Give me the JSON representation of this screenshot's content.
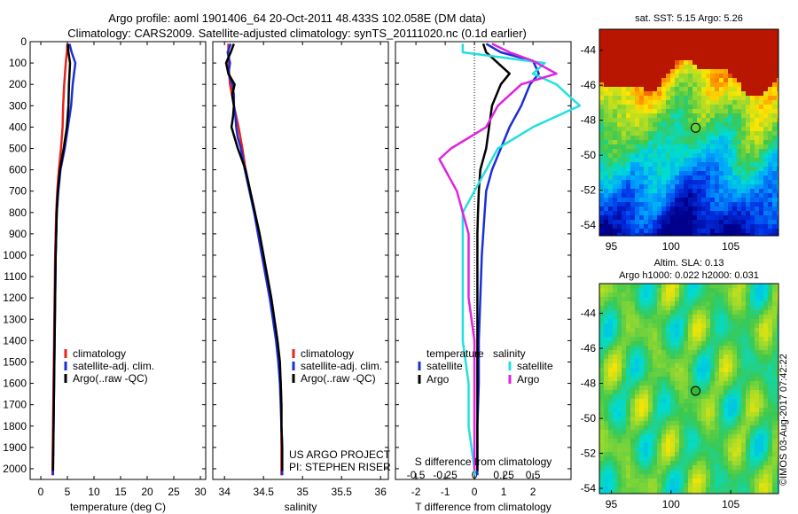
{
  "title_line1": "Argo profile: aoml 1901406_64 20-Oct-2011 48.433S 102.058E (DM data)",
  "title_line2": "Climatology: CARS2009. Satellite-adjusted climatology: synTS_20111020.nc (0.1d earlier)",
  "colors": {
    "climatology": "#e8231b",
    "satellite": "#1a2fd6",
    "argo": "#000000",
    "sal_sat": "#22e0e0",
    "sal_argo": "#e022e0"
  },
  "chart_data": [
    {
      "type": "line",
      "xlabel": "temperature (deg C)",
      "xlim": [
        -2,
        31
      ],
      "xticks": [
        0,
        5,
        10,
        15,
        20,
        25,
        30
      ],
      "ylim": [
        0,
        2050
      ],
      "yticks": [
        0,
        100,
        200,
        300,
        400,
        500,
        600,
        700,
        800,
        900,
        1000,
        1100,
        1200,
        1300,
        1400,
        1500,
        1600,
        1700,
        1800,
        1900,
        2000
      ],
      "legend": [
        "climatology",
        "satellite-adj. clim.",
        "Argo(..raw -QC)"
      ],
      "series": [
        {
          "name": "climatology",
          "color": "#e8231b",
          "points": [
            [
              5.0,
              10
            ],
            [
              4.9,
              50
            ],
            [
              4.7,
              100
            ],
            [
              4.4,
              200
            ],
            [
              4.2,
              300
            ],
            [
              4.1,
              400
            ],
            [
              3.8,
              500
            ],
            [
              3.4,
              600
            ],
            [
              3.1,
              700
            ],
            [
              2.9,
              800
            ],
            [
              2.8,
              900
            ],
            [
              2.7,
              1000
            ],
            [
              2.6,
              1200
            ],
            [
              2.5,
              1400
            ],
            [
              2.4,
              1600
            ],
            [
              2.3,
              1800
            ],
            [
              2.2,
              2000
            ],
            [
              2.2,
              2030
            ]
          ]
        },
        {
          "name": "satellite-adj. clim.",
          "color": "#1a2fd6",
          "points": [
            [
              5.4,
              10
            ],
            [
              5.8,
              50
            ],
            [
              6.5,
              100
            ],
            [
              6.0,
              200
            ],
            [
              5.7,
              300
            ],
            [
              5.1,
              400
            ],
            [
              4.5,
              500
            ],
            [
              3.7,
              600
            ],
            [
              3.3,
              700
            ],
            [
              3.0,
              800
            ],
            [
              2.9,
              900
            ],
            [
              2.8,
              1000
            ],
            [
              2.7,
              1200
            ],
            [
              2.6,
              1400
            ],
            [
              2.5,
              1600
            ],
            [
              2.4,
              1800
            ],
            [
              2.3,
              2000
            ],
            [
              2.3,
              2030
            ]
          ]
        },
        {
          "name": "Argo(..raw -QC)",
          "color": "#000000",
          "points": [
            [
              5.1,
              10
            ],
            [
              5.2,
              50
            ],
            [
              5.5,
              100
            ],
            [
              5.3,
              200
            ],
            [
              5.2,
              300
            ],
            [
              4.9,
              400
            ],
            [
              4.3,
              500
            ],
            [
              3.6,
              600
            ],
            [
              3.2,
              700
            ],
            [
              3.0,
              800
            ],
            [
              2.9,
              900
            ],
            [
              2.8,
              1000
            ],
            [
              2.7,
              1200
            ],
            [
              2.6,
              1400
            ],
            [
              2.5,
              1600
            ],
            [
              2.4,
              1800
            ],
            [
              2.3,
              2000
            ],
            [
              2.3,
              2010
            ]
          ]
        }
      ]
    },
    {
      "type": "line",
      "xlabel": "salinity",
      "xlim": [
        33.85,
        36.1
      ],
      "xticks": [
        34,
        34.5,
        35,
        35.5,
        36
      ],
      "ylim": [
        0,
        2050
      ],
      "legend": [
        "climatology",
        "satellite-adj. clim.",
        "Argo(..raw -QC)"
      ],
      "annotation": [
        "US ARGO PROJECT",
        "PI: STEPHEN RISER"
      ],
      "series": [
        {
          "name": "climatology",
          "color": "#e8231b",
          "points": [
            [
              34.05,
              10
            ],
            [
              34.05,
              100
            ],
            [
              34.07,
              200
            ],
            [
              34.12,
              300
            ],
            [
              34.18,
              400
            ],
            [
              34.23,
              500
            ],
            [
              34.27,
              600
            ],
            [
              34.33,
              700
            ],
            [
              34.39,
              800
            ],
            [
              34.43,
              900
            ],
            [
              34.48,
              1000
            ],
            [
              34.53,
              1100
            ],
            [
              34.58,
              1200
            ],
            [
              34.63,
              1300
            ],
            [
              34.67,
              1400
            ],
            [
              34.7,
              1500
            ],
            [
              34.72,
              1600
            ],
            [
              34.73,
              1700
            ],
            [
              34.73,
              1800
            ],
            [
              34.73,
              1900
            ],
            [
              34.73,
              2000
            ],
            [
              34.73,
              2030
            ]
          ]
        },
        {
          "name": "satellite-adj. clim.",
          "color": "#1a2fd6",
          "points": [
            [
              34.08,
              10
            ],
            [
              34.04,
              50
            ],
            [
              34.07,
              100
            ],
            [
              34.05,
              150
            ],
            [
              34.1,
              200
            ],
            [
              34.12,
              250
            ],
            [
              34.12,
              300
            ],
            [
              34.14,
              350
            ],
            [
              34.15,
              400
            ],
            [
              34.17,
              450
            ],
            [
              34.21,
              500
            ],
            [
              34.26,
              600
            ],
            [
              34.32,
              700
            ],
            [
              34.38,
              800
            ],
            [
              34.43,
              900
            ],
            [
              34.48,
              1000
            ],
            [
              34.53,
              1100
            ],
            [
              34.58,
              1200
            ],
            [
              34.62,
              1300
            ],
            [
              34.66,
              1400
            ],
            [
              34.69,
              1500
            ],
            [
              34.71,
              1600
            ],
            [
              34.72,
              1700
            ],
            [
              34.73,
              1800
            ],
            [
              34.74,
              1900
            ],
            [
              34.74,
              2000
            ],
            [
              34.74,
              2030
            ]
          ]
        },
        {
          "name": "Argo(..raw -QC)",
          "color": "#000000",
          "points": [
            [
              34.12,
              10
            ],
            [
              34.08,
              50
            ],
            [
              34.02,
              100
            ],
            [
              34.05,
              150
            ],
            [
              34.13,
              200
            ],
            [
              34.1,
              250
            ],
            [
              34.12,
              300
            ],
            [
              34.11,
              350
            ],
            [
              34.09,
              400
            ],
            [
              34.13,
              450
            ],
            [
              34.17,
              500
            ],
            [
              34.22,
              550
            ],
            [
              34.27,
              600
            ],
            [
              34.33,
              700
            ],
            [
              34.39,
              800
            ],
            [
              34.45,
              900
            ],
            [
              34.5,
              1000
            ],
            [
              34.55,
              1100
            ],
            [
              34.6,
              1200
            ],
            [
              34.64,
              1300
            ],
            [
              34.68,
              1400
            ],
            [
              34.71,
              1500
            ],
            [
              34.72,
              1600
            ],
            [
              34.73,
              1700
            ],
            [
              34.73,
              1800
            ],
            [
              34.74,
              1900
            ],
            [
              34.74,
              2000
            ],
            [
              34.74,
              2010
            ]
          ]
        }
      ]
    },
    {
      "type": "line",
      "xlabel": "T difference from climatology",
      "xlim": [
        -2.7,
        3.3
      ],
      "xticks": [
        -2,
        -1,
        0,
        1,
        2
      ],
      "top_axis_label": "S difference from climatology",
      "top_ticks": [
        {
          "value": -0.5,
          "label": "-0.5"
        },
        {
          "value": -0.25,
          "label": "-0.25"
        },
        {
          "value": 0,
          "label": "0"
        },
        {
          "value": 0.25,
          "label": "0.25"
        },
        {
          "value": 0.5,
          "label": "0.5"
        }
      ],
      "ylim": [
        0,
        2050
      ],
      "legend": {
        "temperature": {
          "header": "temperature",
          "items": [
            "satellite",
            "Argo"
          ]
        },
        "salinity": {
          "header": "salinity",
          "items": [
            "satellite",
            "Argo"
          ]
        }
      },
      "series": [
        {
          "name": "temperature satellite",
          "color": "#1a2fd6",
          "points": [
            [
              0.4,
              10
            ],
            [
              0.9,
              50
            ],
            [
              2.0,
              90
            ],
            [
              2.2,
              150
            ],
            [
              1.9,
              200
            ],
            [
              1.6,
              300
            ],
            [
              1.2,
              400
            ],
            [
              0.9,
              500
            ],
            [
              0.6,
              600
            ],
            [
              0.4,
              700
            ],
            [
              0.35,
              800
            ],
            [
              0.3,
              900
            ],
            [
              0.25,
              1000
            ],
            [
              0.2,
              1200
            ],
            [
              0.15,
              1400
            ],
            [
              0.15,
              1600
            ],
            [
              0.1,
              1800
            ],
            [
              0.1,
              2000
            ],
            [
              0.1,
              2030
            ]
          ]
        },
        {
          "name": "temperature Argo",
          "color": "#000000",
          "points": [
            [
              0.3,
              10
            ],
            [
              0.4,
              50
            ],
            [
              0.8,
              100
            ],
            [
              1.2,
              150
            ],
            [
              0.9,
              200
            ],
            [
              0.6,
              300
            ],
            [
              0.5,
              400
            ],
            [
              0.4,
              500
            ],
            [
              0.2,
              600
            ],
            [
              0.15,
              700
            ],
            [
              0.12,
              800
            ],
            [
              0.1,
              900
            ],
            [
              0.1,
              1000
            ],
            [
              0.1,
              1200
            ],
            [
              0.1,
              1400
            ],
            [
              0.1,
              1600
            ],
            [
              0.1,
              1800
            ],
            [
              0.1,
              2000
            ],
            [
              0.1,
              2010
            ]
          ]
        },
        {
          "name": "salinity satellite",
          "color": "#22e0e0",
          "points": [
            [
              -0.1,
              10
            ],
            [
              -0.1,
              50
            ],
            [
              0.6,
              100
            ],
            [
              0.5,
              150
            ],
            [
              0.7,
              200
            ],
            [
              0.9,
              300
            ],
            [
              0.5,
              400
            ],
            [
              0.2,
              500
            ],
            [
              0.1,
              600
            ],
            [
              0.0,
              700
            ],
            [
              -0.1,
              800
            ],
            [
              -0.1,
              900
            ],
            [
              -0.1,
              1000
            ],
            [
              -0.1,
              1200
            ],
            [
              -0.1,
              1400
            ],
            [
              -0.05,
              1600
            ],
            [
              -0.05,
              1800
            ],
            [
              0.0,
              2000
            ],
            [
              0.0,
              2030
            ]
          ]
        },
        {
          "name": "salinity Argo",
          "color": "#e022e0",
          "points": [
            [
              0.15,
              10
            ],
            [
              0.3,
              50
            ],
            [
              0.5,
              90
            ],
            [
              0.7,
              150
            ],
            [
              0.4,
              200
            ],
            [
              0.2,
              300
            ],
            [
              0.1,
              400
            ],
            [
              -0.2,
              500
            ],
            [
              -0.3,
              550
            ],
            [
              -0.25,
              600
            ],
            [
              -0.15,
              700
            ],
            [
              -0.1,
              800
            ],
            [
              -0.05,
              900
            ],
            [
              -0.05,
              1000
            ],
            [
              -0.05,
              1200
            ],
            [
              0.0,
              1400
            ],
            [
              0.0,
              1600
            ],
            [
              0.0,
              1800
            ],
            [
              0.0,
              2000
            ],
            [
              0.0,
              2010
            ]
          ]
        }
      ]
    },
    {
      "type": "heatmap",
      "title": "sat. SST: 5.15 Argo: 5.26",
      "xlim": [
        94,
        109
      ],
      "xticks": [
        95,
        100,
        105
      ],
      "ylim": [
        -54.6,
        -42.8
      ],
      "yticks": [
        -44,
        -46,
        -48,
        -50,
        -52,
        -54
      ],
      "marker": {
        "lon": 102.058,
        "lat": -48.433
      }
    },
    {
      "type": "heatmap",
      "title_lines": [
        "Altim. SLA: 0.13",
        "Argo h1000: 0.022 h2000: 0.031"
      ],
      "xlim": [
        94,
        109
      ],
      "xticks": [
        95,
        100,
        105
      ],
      "ylim": [
        -54.3,
        -42.3
      ],
      "yticks": [
        -44,
        -46,
        -48,
        -50,
        -52,
        -54
      ],
      "marker": {
        "lon": 102.058,
        "lat": -48.433
      }
    }
  ],
  "credit": "©IMOS 03-Aug-2017 07:42:22"
}
